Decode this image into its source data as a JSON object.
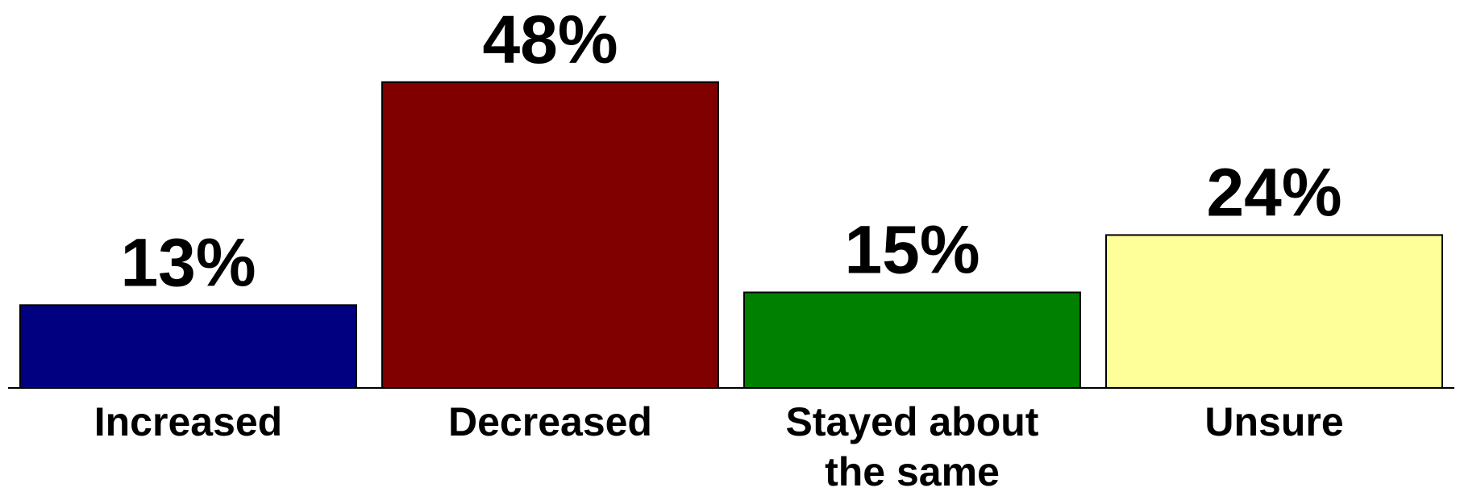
{
  "chart_data": {
    "type": "bar",
    "categories": [
      "Increased",
      "Decreased",
      "Stayed about the same",
      "Unsure"
    ],
    "category_lines": [
      [
        "Increased"
      ],
      [
        "Decreased"
      ],
      [
        "Stayed about",
        "the same"
      ],
      [
        "Unsure"
      ]
    ],
    "values": [
      13,
      48,
      15,
      24
    ],
    "data_labels": [
      "13%",
      "48%",
      "15%",
      "24%"
    ],
    "colors": [
      "#000080",
      "#800000",
      "#008000",
      "#ffff99"
    ],
    "ylim": [
      0,
      100
    ],
    "grid": false,
    "legend": "none",
    "title": "",
    "xlabel": "",
    "ylabel": ""
  }
}
